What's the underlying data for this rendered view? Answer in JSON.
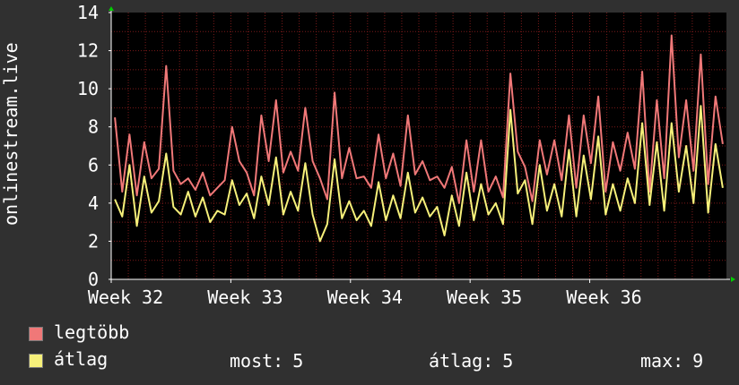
{
  "colors": {
    "background": "#303030",
    "plot_background": "#000000",
    "grid": "#7a1a1a",
    "axis": "#ffffff",
    "series_max": "#f07878",
    "series_avg": "#f6f07a",
    "arrow": "#00cc00"
  },
  "legend": {
    "max_label": "legtöbb",
    "avg_label": "átlag"
  },
  "stats": {
    "current_label": "most:",
    "current_value": "5",
    "average_label": "átlag:",
    "average_value": "5",
    "max_label": "max:",
    "max_value": "9"
  },
  "chart_data": {
    "type": "line",
    "ylabel": "onlinestream.live",
    "ylim": [
      0,
      14
    ],
    "yticks": [
      0,
      2,
      4,
      6,
      8,
      10,
      12,
      14
    ],
    "xlim": [
      0,
      36
    ],
    "xticks": [
      {
        "label": "Week 32",
        "pos": 0
      },
      {
        "label": "Week 33",
        "pos": 7
      },
      {
        "label": "Week 34",
        "pos": 14
      },
      {
        "label": "Week 35",
        "pos": 21
      },
      {
        "label": "Week 36",
        "pos": 28
      }
    ],
    "grid": true,
    "series": [
      {
        "name": "legtöbb",
        "color": "#f07878",
        "values": [
          8.5,
          4.6,
          7.6,
          4.4,
          7.2,
          5.3,
          5.8,
          11.2,
          5.7,
          5.0,
          5.3,
          4.7,
          5.6,
          4.4,
          4.8,
          5.2,
          8.0,
          6.2,
          5.6,
          4.4,
          8.6,
          6.2,
          9.4,
          5.6,
          6.7,
          5.7,
          9.0,
          6.2,
          5.3,
          4.2,
          9.8,
          5.3,
          6.9,
          5.3,
          5.4,
          4.8,
          7.6,
          5.3,
          6.6,
          4.9,
          8.6,
          5.5,
          6.2,
          5.2,
          5.4,
          4.8,
          5.9,
          4.0,
          7.3,
          4.6,
          7.3,
          4.6,
          5.4,
          4.3,
          10.8,
          6.7,
          5.9,
          4.1,
          7.3,
          5.5,
          7.3,
          5.2,
          8.6,
          4.8,
          8.6,
          6.1,
          9.6,
          4.6,
          7.2,
          5.7,
          7.7,
          5.8,
          10.9,
          4.6,
          9.4,
          5.3,
          12.8,
          6.4,
          9.4,
          5.7,
          11.8,
          5.0,
          9.6,
          7.1
        ]
      },
      {
        "name": "átlag",
        "color": "#f6f07a",
        "values": [
          4.2,
          3.3,
          6.0,
          2.8,
          5.4,
          3.5,
          4.1,
          6.6,
          3.8,
          3.4,
          4.6,
          3.3,
          4.3,
          3.0,
          3.6,
          3.4,
          5.2,
          3.9,
          4.5,
          3.2,
          5.4,
          3.9,
          6.4,
          3.4,
          4.6,
          3.6,
          6.1,
          3.4,
          2.0,
          2.9,
          6.3,
          3.2,
          4.1,
          3.1,
          3.6,
          2.8,
          5.1,
          3.1,
          4.4,
          3.2,
          5.6,
          3.5,
          4.3,
          3.3,
          3.8,
          2.3,
          4.4,
          2.8,
          5.6,
          3.1,
          5.0,
          3.4,
          4.0,
          2.9,
          8.9,
          4.5,
          5.2,
          2.9,
          6.0,
          3.6,
          5.0,
          3.3,
          6.8,
          3.3,
          6.5,
          4.2,
          7.5,
          3.4,
          5.0,
          3.6,
          5.3,
          4.0,
          8.2,
          3.9,
          7.2,
          3.6,
          8.2,
          4.6,
          7.0,
          4.0,
          9.1,
          3.5,
          7.1,
          4.8
        ]
      }
    ]
  }
}
